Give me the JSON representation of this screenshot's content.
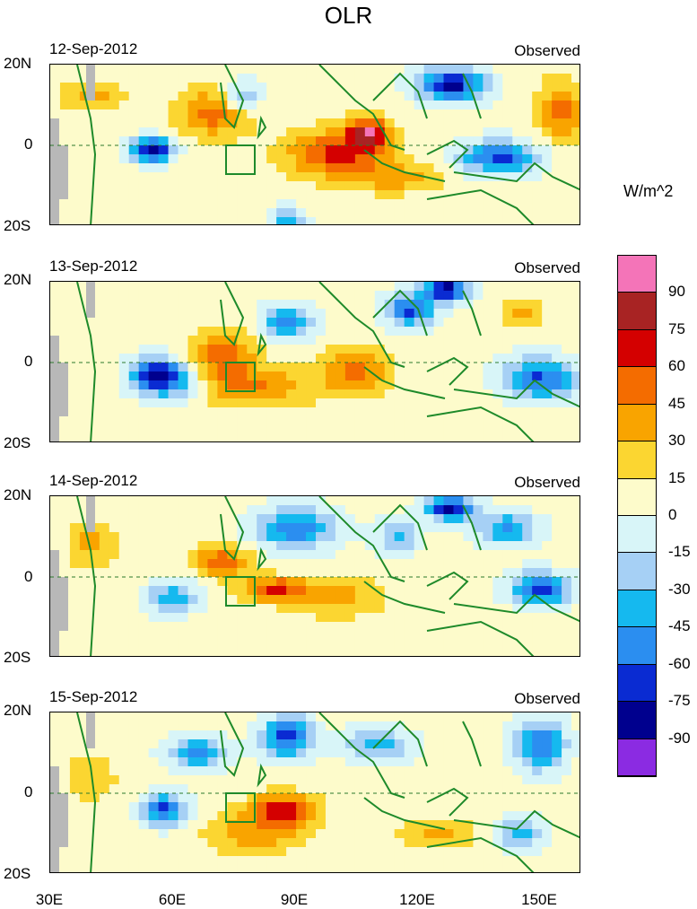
{
  "title": "OLR",
  "units": "W/m^2",
  "panels": [
    {
      "date": "12-Sep-2012",
      "label": "Observed"
    },
    {
      "date": "13-Sep-2012",
      "label": "Observed"
    },
    {
      "date": "14-Sep-2012",
      "label": "Observed"
    },
    {
      "date": "15-Sep-2012",
      "label": "Observed"
    }
  ],
  "lat_labels": [
    "20N",
    "0",
    "20S"
  ],
  "lon_labels": [
    "30E",
    "60E",
    "90E",
    "120E",
    "150E"
  ],
  "colorbar": {
    "labels": [
      "90",
      "75",
      "60",
      "45",
      "30",
      "15",
      "0",
      "-15",
      "-30",
      "-45",
      "-60",
      "-75",
      "-90"
    ],
    "colors": [
      "#f474b8",
      "#a82323",
      "#d40000",
      "#f46c00",
      "#f9a400",
      "#fbd631",
      "#fdfbcb",
      "#d8f5f8",
      "#a6d0f5",
      "#15b9ef",
      "#2b8ef0",
      "#0a2bd2",
      "#00008e",
      "#8b2be2"
    ]
  },
  "chart_data": {
    "type": "heatmap",
    "variable": "OLR",
    "units": "W/m^2",
    "lon_range": [
      30,
      160
    ],
    "lat_range": [
      -20,
      20
    ],
    "contour_levels": [
      -90,
      -75,
      -60,
      -45,
      -30,
      -15,
      0,
      15,
      30,
      45,
      60,
      75,
      90
    ],
    "panels": [
      "12-Sep-2012",
      "13-Sep-2012",
      "14-Sep-2012",
      "15-Sep-2012"
    ]
  }
}
